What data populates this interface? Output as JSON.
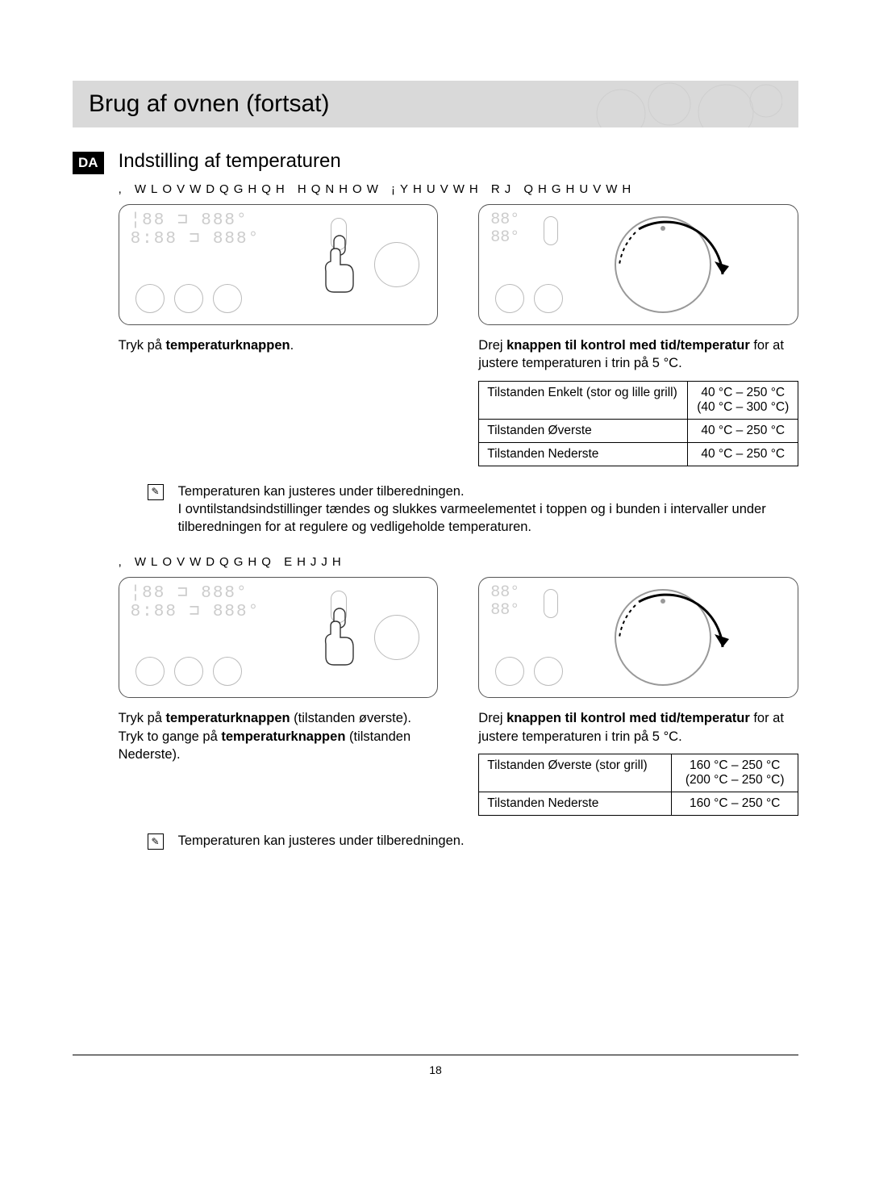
{
  "page_number": "18",
  "title": "Brug af ovnen (fortsat)",
  "lang_badge": "DA",
  "section_title": "Indstilling af temperaturen",
  "subheading1": ", WLOVWDQGHQH HQNHOW  ¡YHUVWH RJ QHGHUVWH",
  "subheading2": ", WLOVWDQGHQ EHJJH",
  "block1": {
    "left_caption_pre": "Tryk på ",
    "left_caption_bold": "temperaturknappen",
    "left_caption_post": ".",
    "right_line1_pre": "Drej ",
    "right_line1_bold": "knappen til kontrol med tid/temperatur",
    "right_line1_post": " for at justere temperaturen i trin på 5 °C.",
    "table": {
      "rows": [
        {
          "mode": "Tilstanden Enkelt (stor og lille grill)",
          "range": "40 °C – 250 °C\n(40 °C – 300 °C)"
        },
        {
          "mode": "Tilstanden Øverste",
          "range": "40 °C – 250 °C"
        },
        {
          "mode": "Tilstanden Nederste",
          "range": "40 °C – 250 °C"
        }
      ]
    }
  },
  "note1": {
    "line1": "Temperaturen kan justeres under tilberedningen.",
    "line2": "I ovntilstandsindstillinger tændes og slukkes varmeelementet i toppen og i bunden i intervaller under tilberedningen for at regulere og vedligeholde temperaturen."
  },
  "block2": {
    "left_l1_pre": "Tryk på ",
    "left_l1_bold": "temperaturknappen",
    "left_l1_post": " (tilstanden øverste).",
    "left_l2": "Tryk to gange på ",
    "left_l2_bold": "temperaturknappen",
    "left_l2_post": " (tilstanden Nederste).",
    "right_line1_pre": "Drej ",
    "right_line1_bold": "knappen til kontrol med tid/temperatur",
    "right_line1_post": " for at justere temperaturen i trin på 5 °C.",
    "table": {
      "rows": [
        {
          "mode": "Tilstanden Øverste (stor grill)",
          "range": "160 °C – 250 °C\n(200 °C – 250 °C)"
        },
        {
          "mode": "Tilstanden Nederste",
          "range": "160 °C – 250 °C"
        }
      ]
    }
  },
  "note2": "Temperaturen kan justeres under tilberedningen.",
  "colors": {
    "titlebar_bg": "#d9d9d9",
    "panel_border": "#555555",
    "faint": "#cccccc"
  }
}
